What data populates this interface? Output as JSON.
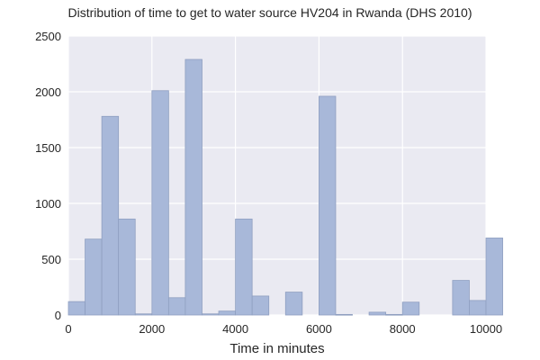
{
  "chart_data": {
    "type": "bar",
    "title": "Distribution of time to get to water source HV204 in Rwanda (DHS 2010)",
    "xlabel": "Time in minutes",
    "ylabel": "",
    "xlim": [
      0,
      10000
    ],
    "ylim": [
      0,
      2500
    ],
    "grid": true,
    "xticks": [
      0,
      2000,
      4000,
      6000,
      8000,
      10000
    ],
    "yticks": [
      0,
      500,
      1000,
      1500,
      2000,
      2500
    ],
    "bin_width": 400,
    "bins": [
      {
        "x0": 0,
        "x1": 400,
        "count": 120
      },
      {
        "x0": 400,
        "x1": 800,
        "count": 680
      },
      {
        "x0": 800,
        "x1": 1200,
        "count": 1780
      },
      {
        "x0": 1200,
        "x1": 1600,
        "count": 860
      },
      {
        "x0": 1600,
        "x1": 2000,
        "count": 10
      },
      {
        "x0": 2000,
        "x1": 2400,
        "count": 2010
      },
      {
        "x0": 2400,
        "x1": 2800,
        "count": 155
      },
      {
        "x0": 2800,
        "x1": 3200,
        "count": 2290
      },
      {
        "x0": 3200,
        "x1": 3600,
        "count": 10
      },
      {
        "x0": 3600,
        "x1": 4000,
        "count": 35
      },
      {
        "x0": 4000,
        "x1": 4400,
        "count": 860
      },
      {
        "x0": 4400,
        "x1": 4800,
        "count": 170
      },
      {
        "x0": 4800,
        "x1": 5200,
        "count": 0
      },
      {
        "x0": 5200,
        "x1": 5600,
        "count": 205
      },
      {
        "x0": 5600,
        "x1": 6000,
        "count": 0
      },
      {
        "x0": 6000,
        "x1": 6400,
        "count": 1960
      },
      {
        "x0": 6400,
        "x1": 6800,
        "count": 5
      },
      {
        "x0": 6800,
        "x1": 7200,
        "count": 0
      },
      {
        "x0": 7200,
        "x1": 7600,
        "count": 25
      },
      {
        "x0": 7600,
        "x1": 8000,
        "count": 5
      },
      {
        "x0": 8000,
        "x1": 8400,
        "count": 115
      },
      {
        "x0": 8400,
        "x1": 8800,
        "count": 0
      },
      {
        "x0": 8800,
        "x1": 9200,
        "count": 0
      },
      {
        "x0": 9200,
        "x1": 9600,
        "count": 310
      },
      {
        "x0": 9600,
        "x1": 10000,
        "count": 130
      },
      {
        "x0": 10000,
        "x1": 10400,
        "count": 690
      }
    ],
    "colors": {
      "bar_fill": "#a8b8d9",
      "bar_edge": "#8f9fc0",
      "plot_bg": "#eaeaf2",
      "grid": "#ffffff"
    }
  }
}
